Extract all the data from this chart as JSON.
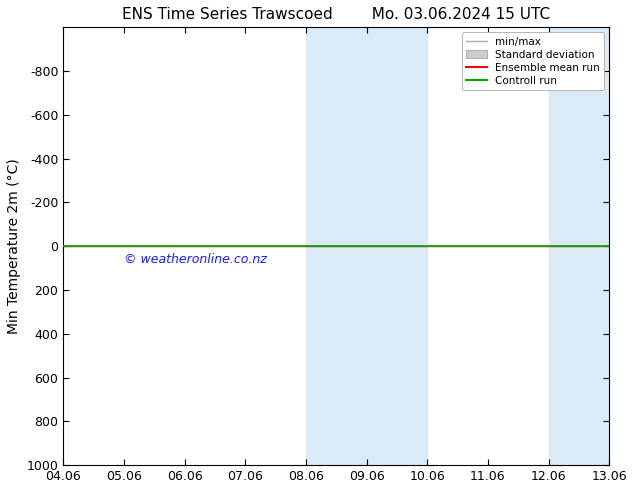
{
  "title": "ENS Time Series Trawscoed",
  "title2": "Mo. 03.06.2024 15 UTC",
  "ylabel": "Min Temperature 2m (°C)",
  "ylim_top": -1000,
  "ylim_bottom": 1000,
  "yticks": [
    -800,
    -600,
    -400,
    -200,
    0,
    200,
    400,
    600,
    800,
    1000
  ],
  "xtick_labels": [
    "04.06",
    "05.06",
    "06.06",
    "07.06",
    "08.06",
    "09.06",
    "10.06",
    "11.06",
    "12.06",
    "13.06"
  ],
  "xtick_positions": [
    0,
    1,
    2,
    3,
    4,
    5,
    6,
    7,
    8,
    9
  ],
  "shaded_regions": [
    {
      "xmin": 4,
      "xmax": 5,
      "color": "#daeaf7"
    },
    {
      "xmin": 5,
      "xmax": 6,
      "color": "#daeaf7"
    },
    {
      "xmin": 8,
      "xmax": 9,
      "color": "#daeaf7"
    }
  ],
  "green_line_y": 0,
  "red_line_y": 0,
  "watermark": "© weatheronline.co.nz",
  "watermark_color": "#1a1aff",
  "background_color": "#ffffff",
  "plot_bg_color": "#ffffff",
  "legend_entries": [
    "min/max",
    "Standard deviation",
    "Ensemble mean run",
    "Controll run"
  ],
  "legend_line_colors": [
    "#aaaaaa",
    "#cccccc",
    "#ff0000",
    "#00aa00"
  ],
  "font_size": 10,
  "title_font_size": 11,
  "tick_label_size": 9
}
